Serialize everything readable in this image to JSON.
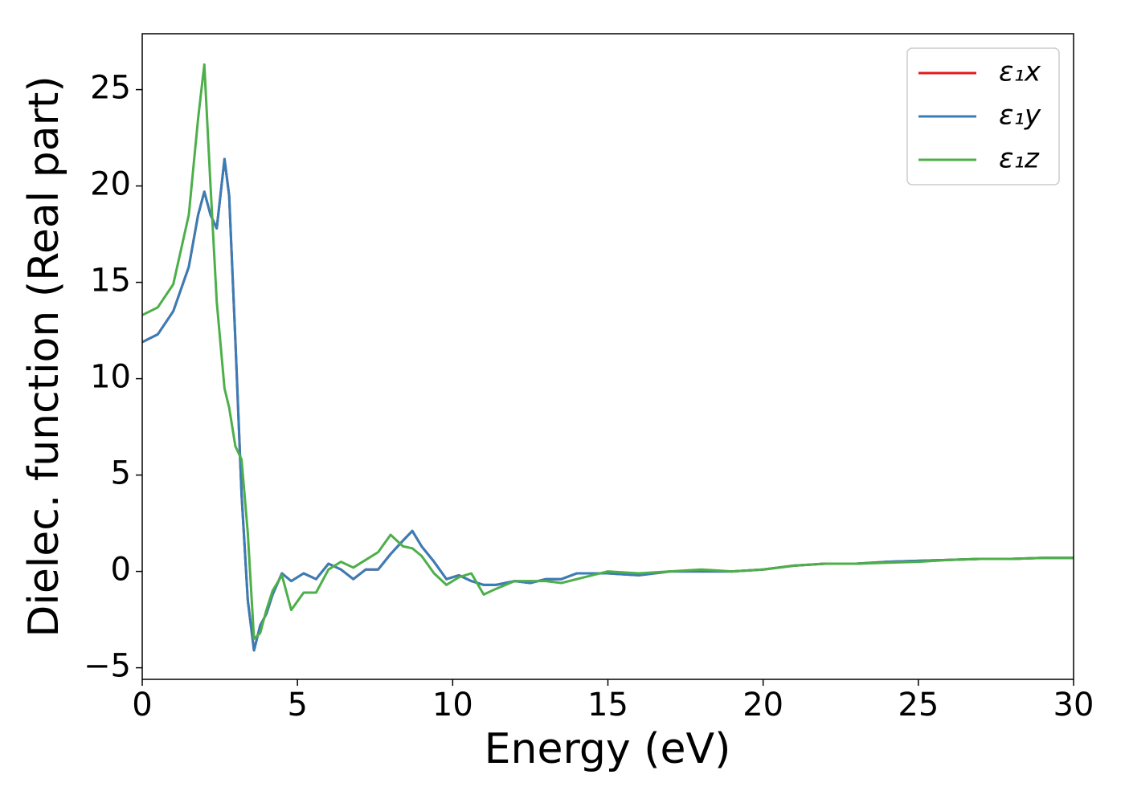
{
  "chart_data": {
    "type": "line",
    "x_label": "Energy (eV)",
    "y_label": "Dielec. function (Real part)",
    "x": [
      0,
      0.5,
      1,
      1.5,
      1.8,
      2.0,
      2.2,
      2.4,
      2.65,
      2.8,
      3.0,
      3.2,
      3.4,
      3.6,
      3.8,
      4.0,
      4.2,
      4.5,
      4.8,
      5.2,
      5.6,
      6.0,
      6.4,
      6.8,
      7.2,
      7.6,
      8.0,
      8.4,
      8.7,
      9.0,
      9.4,
      9.8,
      10.2,
      10.6,
      11.0,
      11.4,
      12.0,
      12.5,
      13.0,
      13.5,
      14.0,
      15,
      16,
      17,
      18,
      19,
      20,
      21,
      22,
      23,
      24,
      25,
      26,
      27,
      28,
      29,
      30
    ],
    "series": [
      {
        "name": "ε₁x",
        "color": "#e41a1c",
        "values": [
          11.9,
          12.3,
          13.5,
          15.8,
          18.5,
          19.7,
          18.5,
          17.8,
          21.4,
          19.5,
          12,
          4,
          -1.5,
          -4.1,
          -2.8,
          -2.2,
          -1.2,
          -0.1,
          -0.5,
          -0.1,
          -0.4,
          0.4,
          0.1,
          -0.4,
          0.1,
          0.1,
          0.9,
          1.6,
          2.1,
          1.3,
          0.5,
          -0.4,
          -0.2,
          -0.5,
          -0.7,
          -0.7,
          -0.5,
          -0.6,
          -0.4,
          -0.4,
          -0.1,
          -0.1,
          -0.2,
          0,
          0,
          0,
          0.1,
          0.3,
          0.4,
          0.4,
          0.5,
          0.55,
          0.6,
          0.65,
          0.65,
          0.7,
          0.7
        ]
      },
      {
        "name": "ε₁y",
        "color": "#377eb8",
        "values": [
          11.9,
          12.3,
          13.5,
          15.8,
          18.5,
          19.7,
          18.5,
          17.8,
          21.4,
          19.5,
          12,
          4,
          -1.5,
          -4.1,
          -2.8,
          -2.2,
          -1.2,
          -0.1,
          -0.5,
          -0.1,
          -0.4,
          0.4,
          0.1,
          -0.4,
          0.1,
          0.1,
          0.9,
          1.6,
          2.1,
          1.3,
          0.5,
          -0.4,
          -0.2,
          -0.5,
          -0.7,
          -0.7,
          -0.5,
          -0.6,
          -0.4,
          -0.4,
          -0.1,
          -0.1,
          -0.2,
          0,
          0,
          0,
          0.1,
          0.3,
          0.4,
          0.4,
          0.5,
          0.55,
          0.6,
          0.65,
          0.65,
          0.7,
          0.7
        ]
      },
      {
        "name": "ε₁z",
        "color": "#4daf4a",
        "values": [
          13.3,
          13.7,
          14.9,
          18.5,
          23.5,
          26.3,
          20,
          14,
          9.5,
          8.5,
          6.5,
          5.8,
          2,
          -3.5,
          -3.2,
          -2.0,
          -1.0,
          -0.2,
          -2.0,
          -1.1,
          -1.1,
          0.1,
          0.5,
          0.2,
          0.6,
          1.0,
          1.9,
          1.3,
          1.2,
          0.8,
          -0.1,
          -0.7,
          -0.3,
          -0.1,
          -1.2,
          -0.9,
          -0.5,
          -0.5,
          -0.5,
          -0.6,
          -0.4,
          0,
          -0.1,
          0,
          0.1,
          0,
          0.1,
          0.3,
          0.4,
          0.4,
          0.45,
          0.5,
          0.6,
          0.65,
          0.65,
          0.7,
          0.7
        ]
      }
    ],
    "xlim": [
      0,
      30
    ],
    "xticks": [
      0,
      5,
      10,
      15,
      20,
      25,
      30
    ],
    "ylim": [
      -5.6,
      27.9
    ],
    "yticks": [
      {
        "value": -5,
        "label": "−5"
      },
      0,
      5,
      10,
      15,
      20,
      25
    ],
    "legend": "upper right",
    "grid": false
  }
}
